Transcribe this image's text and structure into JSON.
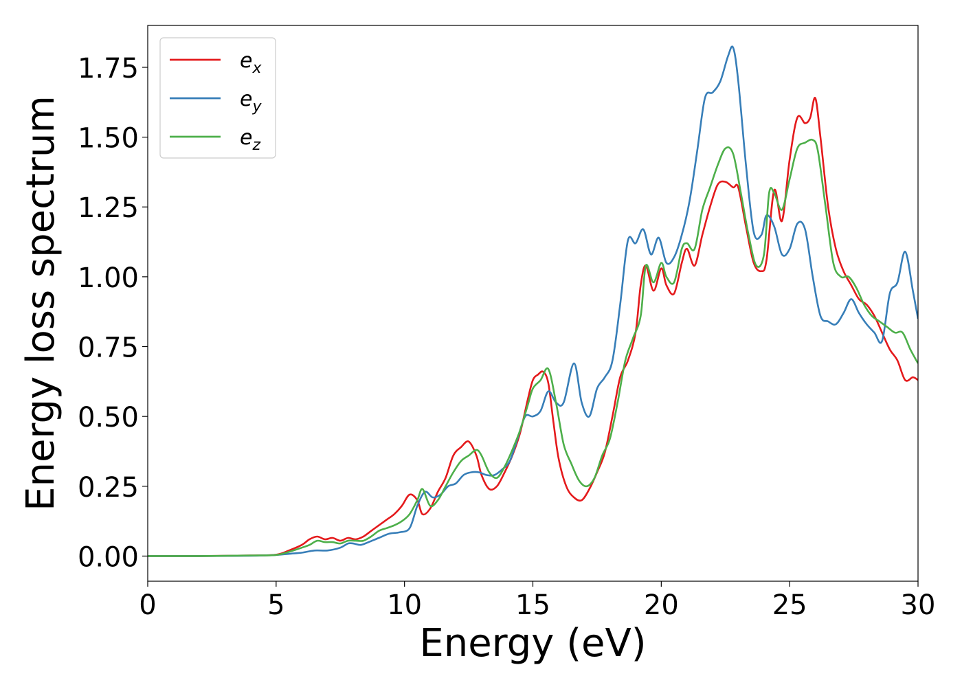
{
  "chart_data": {
    "type": "line",
    "title": "",
    "xlabel": "Energy (eV)",
    "ylabel": "Energy loss spectrum",
    "xlim": [
      0,
      30
    ],
    "ylim": [
      -0.09,
      1.9
    ],
    "xticks": [
      0,
      5,
      10,
      15,
      20,
      25,
      30
    ],
    "xtick_labels": [
      "0",
      "5",
      "10",
      "15",
      "20",
      "25",
      "30"
    ],
    "yticks": [
      0,
      0.25,
      0.5,
      0.75,
      1.0,
      1.25,
      1.5,
      1.75
    ],
    "ytick_labels": [
      "0.00",
      "0.25",
      "0.50",
      "0.75",
      "1.00",
      "1.25",
      "1.50",
      "1.75"
    ],
    "grid": false,
    "legend": {
      "position": "top-left"
    },
    "series": [
      {
        "name": "e_x",
        "label_base": "e",
        "label_sub": "x",
        "color": "#e41a1c",
        "x": [
          0,
          2,
          4,
          5,
          5.5,
          6,
          6.3,
          6.6,
          6.9,
          7.2,
          7.5,
          7.8,
          8.1,
          8.4,
          8.7,
          9.0,
          9.3,
          9.6,
          9.9,
          10.2,
          10.5,
          10.7,
          11.0,
          11.3,
          11.6,
          11.9,
          12.2,
          12.5,
          12.8,
          13.0,
          13.3,
          13.6,
          13.9,
          14.2,
          14.5,
          14.8,
          15.0,
          15.2,
          15.4,
          15.6,
          15.8,
          16.0,
          16.3,
          16.6,
          16.9,
          17.2,
          17.5,
          17.8,
          18.1,
          18.4,
          18.7,
          19.0,
          19.2,
          19.4,
          19.7,
          20.0,
          20.2,
          20.5,
          20.8,
          21.0,
          21.3,
          21.6,
          21.9,
          22.2,
          22.5,
          22.8,
          23.0,
          23.3,
          23.6,
          23.9,
          24.1,
          24.4,
          24.7,
          25.0,
          25.3,
          25.6,
          25.8,
          26.0,
          26.2,
          26.5,
          26.8,
          27.1,
          27.4,
          27.7,
          28.0,
          28.3,
          28.6,
          28.9,
          29.2,
          29.5,
          29.8,
          30.0
        ],
        "y": [
          0,
          0,
          0.002,
          0.005,
          0.02,
          0.04,
          0.06,
          0.07,
          0.06,
          0.065,
          0.055,
          0.065,
          0.06,
          0.07,
          0.09,
          0.11,
          0.13,
          0.15,
          0.18,
          0.22,
          0.2,
          0.15,
          0.17,
          0.23,
          0.28,
          0.36,
          0.39,
          0.41,
          0.36,
          0.29,
          0.24,
          0.25,
          0.3,
          0.36,
          0.44,
          0.56,
          0.63,
          0.65,
          0.66,
          0.62,
          0.48,
          0.35,
          0.25,
          0.21,
          0.2,
          0.24,
          0.3,
          0.37,
          0.5,
          0.64,
          0.7,
          0.8,
          0.97,
          1.04,
          0.95,
          1.03,
          0.97,
          0.94,
          1.05,
          1.1,
          1.04,
          1.15,
          1.25,
          1.33,
          1.34,
          1.32,
          1.32,
          1.18,
          1.05,
          1.02,
          1.06,
          1.31,
          1.2,
          1.42,
          1.57,
          1.55,
          1.57,
          1.64,
          1.5,
          1.25,
          1.1,
          1.02,
          0.97,
          0.92,
          0.9,
          0.86,
          0.8,
          0.74,
          0.7,
          0.63,
          0.64,
          0.63
        ]
      },
      {
        "name": "e_y",
        "label_base": "e",
        "label_sub": "y",
        "color": "#377eb8",
        "x": [
          0,
          2,
          4,
          5,
          5.5,
          6,
          6.5,
          7.0,
          7.5,
          7.8,
          8.0,
          8.3,
          8.6,
          9.0,
          9.4,
          9.8,
          10.2,
          10.5,
          10.8,
          11.1,
          11.4,
          11.7,
          12.0,
          12.3,
          12.6,
          12.9,
          13.2,
          13.5,
          13.8,
          14.1,
          14.4,
          14.7,
          15.0,
          15.3,
          15.6,
          15.9,
          16.2,
          16.6,
          16.9,
          17.2,
          17.5,
          17.8,
          18.1,
          18.4,
          18.7,
          19.0,
          19.3,
          19.6,
          19.9,
          20.2,
          20.5,
          20.8,
          21.1,
          21.4,
          21.7,
          22.0,
          22.3,
          22.6,
          22.8,
          23.0,
          23.3,
          23.6,
          23.9,
          24.1,
          24.4,
          24.7,
          25.0,
          25.3,
          25.6,
          25.9,
          26.2,
          26.5,
          26.8,
          27.1,
          27.4,
          27.7,
          28.0,
          28.3,
          28.6,
          28.9,
          29.2,
          29.5,
          29.8,
          30.0
        ],
        "y": [
          0,
          0,
          0.001,
          0.004,
          0.008,
          0.012,
          0.02,
          0.02,
          0.03,
          0.045,
          0.045,
          0.04,
          0.05,
          0.065,
          0.08,
          0.085,
          0.1,
          0.18,
          0.23,
          0.21,
          0.22,
          0.25,
          0.26,
          0.29,
          0.3,
          0.3,
          0.29,
          0.29,
          0.31,
          0.34,
          0.42,
          0.5,
          0.5,
          0.52,
          0.59,
          0.55,
          0.55,
          0.69,
          0.55,
          0.5,
          0.6,
          0.64,
          0.7,
          0.9,
          1.13,
          1.12,
          1.17,
          1.08,
          1.14,
          1.05,
          1.07,
          1.15,
          1.27,
          1.45,
          1.64,
          1.66,
          1.7,
          1.79,
          1.82,
          1.7,
          1.4,
          1.16,
          1.15,
          1.22,
          1.18,
          1.08,
          1.1,
          1.19,
          1.17,
          1.0,
          0.86,
          0.84,
          0.83,
          0.87,
          0.92,
          0.87,
          0.83,
          0.8,
          0.77,
          0.94,
          0.98,
          1.09,
          0.95,
          0.85
        ]
      },
      {
        "name": "e_z",
        "label_base": "e",
        "label_sub": "z",
        "color": "#4daf4a",
        "x": [
          0,
          2,
          4,
          5,
          5.5,
          6,
          6.3,
          6.6,
          6.9,
          7.2,
          7.5,
          7.8,
          8.1,
          8.4,
          8.7,
          9.0,
          9.3,
          9.6,
          9.9,
          10.2,
          10.5,
          10.7,
          11.0,
          11.3,
          11.6,
          11.9,
          12.2,
          12.5,
          12.8,
          13.0,
          13.3,
          13.6,
          13.9,
          14.2,
          14.5,
          14.8,
          15.0,
          15.3,
          15.6,
          15.9,
          16.2,
          16.5,
          16.8,
          17.1,
          17.4,
          17.7,
          18.0,
          18.3,
          18.6,
          18.9,
          19.2,
          19.4,
          19.7,
          20.0,
          20.2,
          20.5,
          20.8,
          21.0,
          21.3,
          21.6,
          21.9,
          22.2,
          22.5,
          22.8,
          23.1,
          23.4,
          23.7,
          24.0,
          24.2,
          24.4,
          24.7,
          25.0,
          25.3,
          25.6,
          25.9,
          26.1,
          26.4,
          26.7,
          27.0,
          27.3,
          27.6,
          27.9,
          28.2,
          28.5,
          28.8,
          29.1,
          29.4,
          29.7,
          30.0
        ],
        "y": [
          0,
          0,
          0.002,
          0.004,
          0.015,
          0.03,
          0.04,
          0.055,
          0.05,
          0.05,
          0.045,
          0.055,
          0.055,
          0.055,
          0.07,
          0.09,
          0.1,
          0.11,
          0.125,
          0.15,
          0.2,
          0.24,
          0.18,
          0.2,
          0.25,
          0.3,
          0.34,
          0.36,
          0.38,
          0.36,
          0.3,
          0.28,
          0.32,
          0.38,
          0.45,
          0.54,
          0.6,
          0.63,
          0.67,
          0.55,
          0.4,
          0.33,
          0.27,
          0.25,
          0.28,
          0.36,
          0.42,
          0.55,
          0.7,
          0.78,
          0.86,
          1.04,
          0.98,
          1.05,
          1.0,
          0.98,
          1.1,
          1.12,
          1.1,
          1.24,
          1.32,
          1.4,
          1.46,
          1.44,
          1.3,
          1.15,
          1.04,
          1.08,
          1.3,
          1.3,
          1.24,
          1.35,
          1.46,
          1.48,
          1.49,
          1.45,
          1.25,
          1.05,
          1.0,
          1.0,
          0.96,
          0.9,
          0.86,
          0.84,
          0.82,
          0.8,
          0.8,
          0.74,
          0.69
        ]
      }
    ]
  }
}
